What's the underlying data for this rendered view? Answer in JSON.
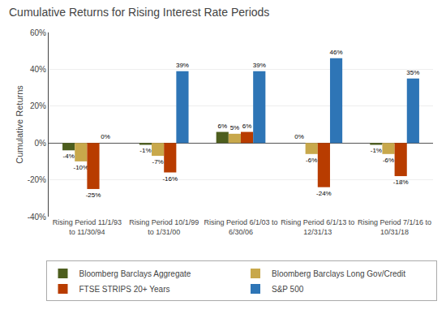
{
  "chart_data": {
    "type": "bar",
    "title": "Cumulative Returns for Rising Interest Rate Periods",
    "ylabel": "Cumulative Returns",
    "categories": [
      "Rising Period 11/1/93\nto 11/30/94",
      "Rising Period 10/1/99\nto 1/31/00",
      "Rising Period 6/1/03 to\n6/30/06",
      "Rising Period 6/1/13 to\n12/31/13",
      "Rising Period 7/1/16 to\n10/31/18"
    ],
    "series": [
      {
        "name": "Bloomberg Barclays Aggregate",
        "color": "#4d5e1e",
        "values": [
          -4,
          -1,
          6,
          0,
          -1
        ],
        "value_labels": [
          "-4%",
          "-1%",
          "6%",
          "0%",
          "-1%"
        ]
      },
      {
        "name": "Bloomberg Barclays Long Gov/Credit",
        "color": "#c8a84b",
        "values": [
          -10,
          -7,
          5,
          -6,
          -6
        ],
        "value_labels": [
          "-10%",
          "-7%",
          "5%",
          "-6%",
          "-6%"
        ]
      },
      {
        "name": "FTSE STRIPS 20+ Years",
        "color": "#b83c00",
        "values": [
          -25,
          -16,
          6,
          -24,
          -18
        ],
        "value_labels": [
          "-25%",
          "-16%",
          "6%",
          "-24%",
          "-18%"
        ]
      },
      {
        "name": "S&P 500",
        "color": "#2e75b6",
        "values": [
          0,
          39,
          39,
          46,
          35
        ],
        "value_labels": [
          "0%",
          "39%",
          "39%",
          "46%",
          "35%"
        ]
      }
    ],
    "ylim": [
      -40,
      60
    ],
    "yticks": [
      {
        "value": -40,
        "label": "-40%"
      },
      {
        "value": -20,
        "label": "-20%"
      },
      {
        "value": 0,
        "label": "0%"
      },
      {
        "value": 20,
        "label": "20%"
      },
      {
        "value": 40,
        "label": "40%"
      },
      {
        "value": 60,
        "label": "60%"
      }
    ],
    "grid": true,
    "legend": "bottom",
    "data_labels": true
  }
}
